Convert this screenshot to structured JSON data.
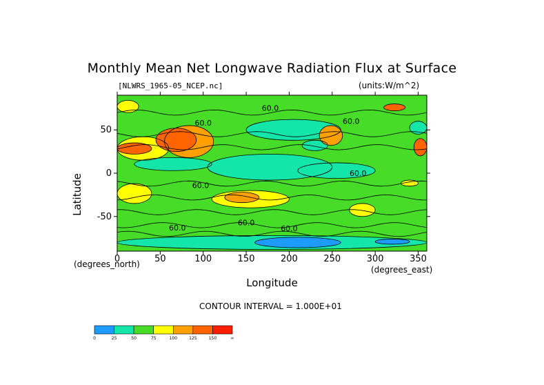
{
  "chart_data": {
    "type": "heatmap",
    "title": "Monthly Mean Net Longwave Radiation Flux at Surface",
    "subtitle_file": "[NLWRS_1965-05_NCEP.nc]",
    "units": "(units:W/m^2)",
    "xlabel": "Longitude",
    "ylabel": "Latitude",
    "x_unit_label": "(degrees_east)",
    "y_unit_label": "(degrees_north)",
    "xlim": [
      0,
      360
    ],
    "ylim": [
      -90,
      90
    ],
    "x_ticks": [
      "0",
      "50",
      "100",
      "150",
      "200",
      "250",
      "300",
      "350"
    ],
    "x_tick_values": [
      0,
      50,
      100,
      150,
      200,
      250,
      300,
      350
    ],
    "y_ticks": [
      "50",
      "0",
      "-50"
    ],
    "y_tick_values": [
      50,
      0,
      -50
    ],
    "contour_interval_text": "CONTOUR INTERVAL = 1.000E+01",
    "contour_labels": [
      {
        "text": "60.0",
        "lon": 178,
        "lat": 72
      },
      {
        "text": "60.0",
        "lon": 100,
        "lat": 55
      },
      {
        "text": "60.0",
        "lon": 272,
        "lat": 57
      },
      {
        "text": "60.0",
        "lon": 97,
        "lat": -17
      },
      {
        "text": "60.0",
        "lon": 150,
        "lat": -60
      },
      {
        "text": "60.0",
        "lon": 280,
        "lat": -3
      },
      {
        "text": "60.0",
        "lon": 70,
        "lat": -66
      },
      {
        "text": "60.0",
        "lon": 200,
        "lat": -67
      }
    ],
    "colorbar": {
      "labels": [
        "0",
        "25",
        "50",
        "75",
        "100",
        "125",
        "150",
        "∞"
      ],
      "colors": [
        "#1e9bff",
        "#14e6aa",
        "#46dc28",
        "#ffff00",
        "#ffa000",
        "#ff6400",
        "#ff1e00"
      ]
    },
    "regions": [
      {
        "lon": [
          0,
          360
        ],
        "lat": [
          -90,
          90
        ],
        "level": 2
      },
      {
        "lon": [
          105,
          250
        ],
        "lat": [
          -8,
          22
        ],
        "level": 1
      },
      {
        "lon": [
          20,
          110
        ],
        "lat": [
          3,
          18
        ],
        "level": 1
      },
      {
        "lon": [
          210,
          300
        ],
        "lat": [
          -6,
          12
        ],
        "level": 1
      },
      {
        "lon": [
          150,
          260
        ],
        "lat": [
          38,
          62
        ],
        "level": 1
      },
      {
        "lon": [
          215,
          245
        ],
        "lat": [
          26,
          38
        ],
        "level": 1
      },
      {
        "lon": [
          340,
          360
        ],
        "lat": [
          45,
          60
        ],
        "level": 1
      },
      {
        "lon": [
          0,
          60
        ],
        "lat": [
          15,
          42
        ],
        "level": 3
      },
      {
        "lon": [
          55,
          112
        ],
        "lat": [
          18,
          55
        ],
        "level": 4
      },
      {
        "lon": [
          0,
          40
        ],
        "lat": [
          22,
          35
        ],
        "level": 5
      },
      {
        "lon": [
          45,
          92
        ],
        "lat": [
          25,
          52
        ],
        "level": 5
      },
      {
        "lon": [
          235,
          262
        ],
        "lat": [
          32,
          55
        ],
        "level": 4
      },
      {
        "lon": [
          345,
          360
        ],
        "lat": [
          20,
          40
        ],
        "level": 5
      },
      {
        "lon": [
          310,
          335
        ],
        "lat": [
          72,
          80
        ],
        "level": 5
      },
      {
        "lon": [
          0,
          25
        ],
        "lat": [
          70,
          84
        ],
        "level": 3
      },
      {
        "lon": [
          0,
          40
        ],
        "lat": [
          -35,
          -12
        ],
        "level": 3
      },
      {
        "lon": [
          110,
          200
        ],
        "lat": [
          -40,
          -20
        ],
        "level": 3
      },
      {
        "lon": [
          125,
          165
        ],
        "lat": [
          -34,
          -22
        ],
        "level": 4
      },
      {
        "lon": [
          270,
          300
        ],
        "lat": [
          -50,
          -35
        ],
        "level": 3
      },
      {
        "lon": [
          330,
          350
        ],
        "lat": [
          -15,
          -8
        ],
        "level": 3
      },
      {
        "lon": [
          0,
          360
        ],
        "lat": [
          -88,
          -72
        ],
        "level": 1
      },
      {
        "lon": [
          160,
          260
        ],
        "lat": [
          -86,
          -74
        ],
        "level": 0
      },
      {
        "lon": [
          300,
          340
        ],
        "lat": [
          -82,
          -76
        ],
        "level": 0
      }
    ]
  }
}
